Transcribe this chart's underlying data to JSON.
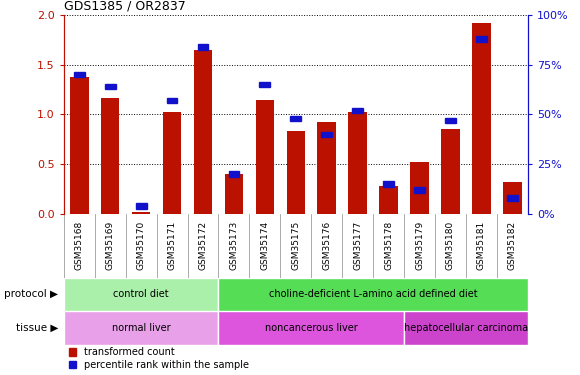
{
  "title": "GDS1385 / OR2837",
  "samples": [
    "GSM35168",
    "GSM35169",
    "GSM35170",
    "GSM35171",
    "GSM35172",
    "GSM35173",
    "GSM35174",
    "GSM35175",
    "GSM35176",
    "GSM35177",
    "GSM35178",
    "GSM35179",
    "GSM35180",
    "GSM35181",
    "GSM35182"
  ],
  "red_values": [
    1.38,
    1.16,
    0.02,
    1.02,
    1.65,
    0.4,
    1.14,
    0.83,
    0.92,
    1.02,
    0.28,
    0.52,
    0.85,
    1.92,
    0.32
  ],
  "blue_values_pct": [
    70,
    64,
    4,
    57,
    84,
    20,
    65,
    48,
    40,
    52,
    15,
    12,
    47,
    88,
    8
  ],
  "ylim_left": [
    0,
    2
  ],
  "ylim_right": [
    0,
    100
  ],
  "yticks_left": [
    0,
    0.5,
    1.0,
    1.5,
    2.0
  ],
  "yticks_right": [
    0,
    25,
    50,
    75,
    100
  ],
  "protocol_groups": [
    {
      "label": "control diet",
      "start": 0,
      "end": 5,
      "color": "#aaf0aa"
    },
    {
      "label": "choline-deficient L-amino acid defined diet",
      "start": 5,
      "end": 15,
      "color": "#55dd55"
    }
  ],
  "tissue_groups": [
    {
      "label": "normal liver",
      "start": 0,
      "end": 5,
      "color": "#e8a0e8"
    },
    {
      "label": "noncancerous liver",
      "start": 5,
      "end": 11,
      "color": "#dd55dd"
    },
    {
      "label": "hepatocellular carcinoma",
      "start": 11,
      "end": 15,
      "color": "#cc44cc"
    }
  ],
  "bar_color_red": "#bb1100",
  "bar_color_blue": "#1111cc",
  "legend_red_label": "transformed count",
  "legend_blue_label": "percentile rank within the sample",
  "protocol_label": "protocol",
  "tissue_label": "tissue",
  "xtick_bg_color": "#c0c0c0",
  "xtick_border_color": "#888888"
}
